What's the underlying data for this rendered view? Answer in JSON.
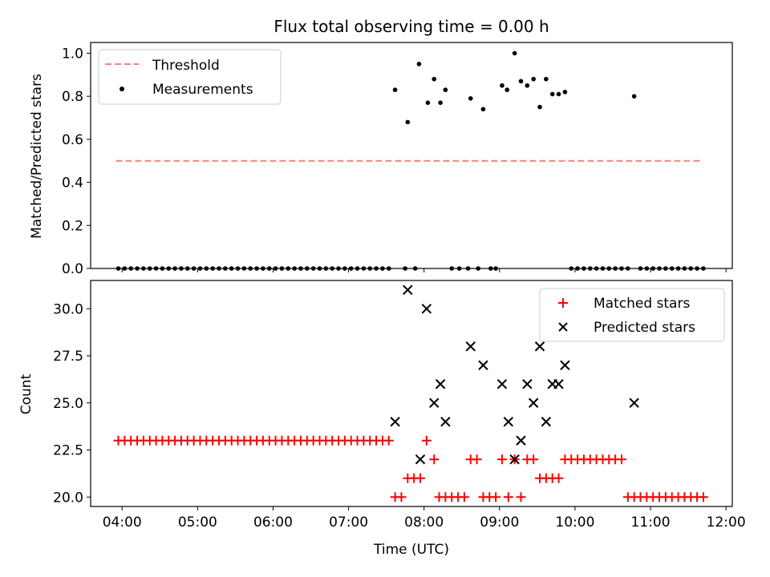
{
  "chart_data": [
    {
      "type": "scatter",
      "title": "Flux total observing time = 0.00 h",
      "xlabel": "",
      "ylabel": "Matched/Predicted stars",
      "ylim": [
        0,
        1.05
      ],
      "xlim": [
        "03:35",
        "12:05"
      ],
      "yticks": [
        "0.0",
        "0.2",
        "0.4",
        "0.6",
        "0.8",
        "1.0"
      ],
      "legend_position": "top-left",
      "threshold": {
        "name": "Threshold",
        "value": 0.5,
        "x_range": [
          "03:55",
          "11:40"
        ],
        "color": "#ff7f7f"
      },
      "series": [
        {
          "name": "Measurements",
          "color": "#000000",
          "points": [
            [
              "07:37",
              0.83
            ],
            [
              "07:45",
              0.0
            ],
            [
              "07:47",
              0.68
            ],
            [
              "07:53",
              0.0
            ],
            [
              "07:56",
              0.95
            ],
            [
              "08:03",
              0.77
            ],
            [
              "08:08",
              0.88
            ],
            [
              "08:13",
              0.77
            ],
            [
              "08:17",
              0.83
            ],
            [
              "08:22",
              0.0
            ],
            [
              "08:28",
              0.0
            ],
            [
              "08:35",
              0.0
            ],
            [
              "08:37",
              0.79
            ],
            [
              "08:43",
              0.0
            ],
            [
              "08:47",
              0.74
            ],
            [
              "08:53",
              0.0
            ],
            [
              "08:57",
              0.0
            ],
            [
              "09:02",
              0.85
            ],
            [
              "09:06",
              0.83
            ],
            [
              "09:12",
              1.0
            ],
            [
              "09:17",
              0.87
            ],
            [
              "09:22",
              0.85
            ],
            [
              "09:27",
              0.88
            ],
            [
              "09:32",
              0.75
            ],
            [
              "09:37",
              0.88
            ],
            [
              "09:42",
              0.81
            ],
            [
              "09:47",
              0.81
            ],
            [
              "09:52",
              0.82
            ],
            [
              "10:47",
              0.8
            ]
          ],
          "zero_series": {
            "from": "03:57",
            "to": "07:34",
            "step_min": 5,
            "extra": [
              "09:57",
              "10:02",
              "10:07",
              "10:12",
              "10:17",
              "10:22",
              "10:27",
              "10:32",
              "10:37",
              "10:42",
              "10:52",
              "10:57",
              "11:02",
              "11:07",
              "11:12",
              "11:17",
              "11:22",
              "11:27",
              "11:32",
              "11:37",
              "11:42"
            ]
          }
        }
      ]
    },
    {
      "type": "scatter",
      "title": "",
      "xlabel": "Time (UTC)",
      "ylabel": "Count",
      "ylim": [
        19.5,
        31.5
      ],
      "xlim": [
        "03:35",
        "12:05"
      ],
      "xticks": [
        "04:00",
        "05:00",
        "06:00",
        "07:00",
        "08:00",
        "09:00",
        "10:00",
        "11:00",
        "12:00"
      ],
      "yticks": [
        "20.0",
        "22.5",
        "25.0",
        "27.5",
        "30.0"
      ],
      "legend_position": "top-right",
      "series": [
        {
          "name": "Matched stars",
          "marker": "+",
          "color": "#ff0000",
          "points_constant": {
            "from": "03:57",
            "to": "07:34",
            "step_min": 5,
            "value": 23
          },
          "points": [
            [
              "07:37",
              20
            ],
            [
              "07:42",
              20
            ],
            [
              "07:47",
              21
            ],
            [
              "07:52",
              21
            ],
            [
              "07:57",
              21
            ],
            [
              "08:02",
              23
            ],
            [
              "08:08",
              22
            ],
            [
              "08:12",
              20
            ],
            [
              "08:17",
              20
            ],
            [
              "08:22",
              20
            ],
            [
              "08:27",
              20
            ],
            [
              "08:32",
              20
            ],
            [
              "08:37",
              22
            ],
            [
              "08:42",
              22
            ],
            [
              "08:47",
              20
            ],
            [
              "08:52",
              20
            ],
            [
              "08:57",
              20
            ],
            [
              "09:02",
              22
            ],
            [
              "09:07",
              20
            ],
            [
              "09:12",
              22
            ],
            [
              "09:17",
              20
            ],
            [
              "09:22",
              22
            ],
            [
              "09:27",
              22
            ],
            [
              "09:32",
              21
            ],
            [
              "09:37",
              21
            ],
            [
              "09:42",
              21
            ],
            [
              "09:47",
              21
            ],
            [
              "09:52",
              22
            ],
            [
              "09:57",
              22
            ],
            [
              "10:02",
              22
            ],
            [
              "10:07",
              22
            ],
            [
              "10:12",
              22
            ],
            [
              "10:17",
              22
            ],
            [
              "10:22",
              22
            ],
            [
              "10:27",
              22
            ],
            [
              "10:32",
              22
            ],
            [
              "10:37",
              22
            ],
            [
              "10:42",
              20
            ],
            [
              "10:47",
              20
            ],
            [
              "10:52",
              20
            ],
            [
              "10:57",
              20
            ],
            [
              "11:02",
              20
            ],
            [
              "11:07",
              20
            ],
            [
              "11:12",
              20
            ],
            [
              "11:17",
              20
            ],
            [
              "11:22",
              20
            ],
            [
              "11:27",
              20
            ],
            [
              "11:32",
              20
            ],
            [
              "11:37",
              20
            ],
            [
              "11:42",
              20
            ]
          ]
        },
        {
          "name": "Predicted stars",
          "marker": "x",
          "color": "#000000",
          "points": [
            [
              "07:37",
              24
            ],
            [
              "07:47",
              31
            ],
            [
              "07:57",
              22
            ],
            [
              "08:02",
              30
            ],
            [
              "08:08",
              25
            ],
            [
              "08:13",
              26
            ],
            [
              "08:17",
              24
            ],
            [
              "08:37",
              28
            ],
            [
              "08:47",
              27
            ],
            [
              "09:02",
              26
            ],
            [
              "09:07",
              24
            ],
            [
              "09:12",
              22
            ],
            [
              "09:17",
              23
            ],
            [
              "09:22",
              26
            ],
            [
              "09:27",
              25
            ],
            [
              "09:32",
              28
            ],
            [
              "09:37",
              24
            ],
            [
              "09:42",
              26
            ],
            [
              "09:47",
              26
            ],
            [
              "09:52",
              27
            ],
            [
              "10:47",
              25
            ]
          ]
        }
      ]
    }
  ]
}
